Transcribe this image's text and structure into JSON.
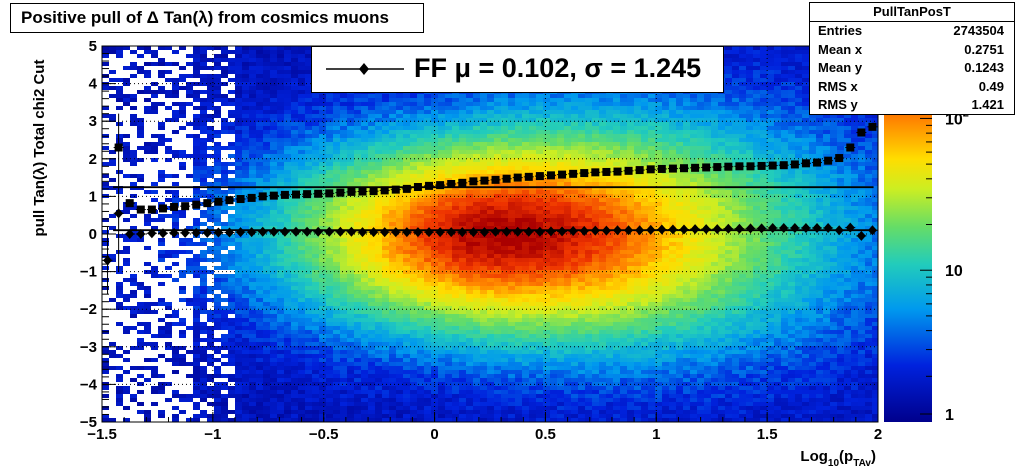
{
  "title": "Positive pull of Δ Tan(λ) from cosmics muons",
  "stats": {
    "name": "PullTanPosT",
    "rows": [
      {
        "label": "Entries",
        "value": "2743504"
      },
      {
        "label": "Mean x",
        "value": "0.2751"
      },
      {
        "label": "Mean y",
        "value": "0.1243"
      },
      {
        "label": "RMS x",
        "value": "0.49"
      },
      {
        "label": "RMS y",
        "value": "1.421"
      }
    ]
  },
  "legend": {
    "label": "FF μ =  0.102, σ =   1.245",
    "marker_color": "#000000"
  },
  "chart_data": {
    "type": "heatmap",
    "title": "Positive pull of Δ Tan(λ) from cosmics muons",
    "xlabel": "Log10(pTAv)",
    "xlabel_main": "Log",
    "xlabel_sub1": "10",
    "xlabel_mid": "(p",
    "xlabel_sub2": "TAv",
    "xlabel_end": ")",
    "ylabel": "pull Tan(λ)  Total chi2 Cut",
    "xlim": [
      -1.5,
      2
    ],
    "ylim": [
      -5,
      5
    ],
    "xticks": [
      {
        "v": -1.5,
        "t": "−1.5"
      },
      {
        "v": -1,
        "t": "−1"
      },
      {
        "v": -0.5,
        "t": "−0.5"
      },
      {
        "v": 0,
        "t": "0"
      },
      {
        "v": 0.5,
        "t": "0.5"
      },
      {
        "v": 1,
        "t": "1"
      },
      {
        "v": 1.5,
        "t": "1.5"
      },
      {
        "v": 2,
        "t": "2"
      }
    ],
    "yticks": [
      {
        "v": 5,
        "t": "5"
      },
      {
        "v": 4,
        "t": "4"
      },
      {
        "v": 3,
        "t": "3"
      },
      {
        "v": 2,
        "t": "2"
      },
      {
        "v": 1,
        "t": "1"
      },
      {
        "v": 0,
        "t": "0"
      },
      {
        "v": -1,
        "t": "−1"
      },
      {
        "v": -2,
        "t": "−2"
      },
      {
        "v": -3,
        "t": "−3"
      },
      {
        "v": -4,
        "t": "−4"
      },
      {
        "v": -5,
        "t": "−5"
      }
    ],
    "grid": true,
    "colorbar": {
      "scale": "log",
      "range": [
        1,
        300
      ],
      "labels": [
        {
          "v": 1,
          "t": "1"
        },
        {
          "v": 10,
          "t": "10"
        },
        {
          "v": 100,
          "t": "10",
          "sup": "2"
        }
      ]
    },
    "heatmap_peak": {
      "x": 0.3,
      "y": 0.0
    },
    "series": [
      {
        "name": "mean",
        "marker": "diamond",
        "x": [
          -1.475,
          -1.425,
          -1.375,
          -1.325,
          -1.275,
          -1.225,
          -1.175,
          -1.125,
          -1.075,
          -1.025,
          -0.975,
          -0.925,
          -0.875,
          -0.825,
          -0.775,
          -0.725,
          -0.675,
          -0.625,
          -0.575,
          -0.525,
          -0.475,
          -0.425,
          -0.375,
          -0.325,
          -0.275,
          -0.225,
          -0.175,
          -0.125,
          -0.075,
          -0.025,
          0.025,
          0.075,
          0.125,
          0.175,
          0.225,
          0.275,
          0.325,
          0.375,
          0.425,
          0.475,
          0.525,
          0.575,
          0.625,
          0.675,
          0.725,
          0.775,
          0.825,
          0.875,
          0.925,
          0.975,
          1.025,
          1.075,
          1.125,
          1.175,
          1.225,
          1.275,
          1.325,
          1.375,
          1.425,
          1.475,
          1.525,
          1.575,
          1.625,
          1.675,
          1.725,
          1.775,
          1.825,
          1.875,
          1.925,
          1.975
        ],
        "y": [
          -0.7,
          0.55,
          0.0,
          0.0,
          0.02,
          0.02,
          0.03,
          0.03,
          0.03,
          0.03,
          0.04,
          0.04,
          0.05,
          0.05,
          0.06,
          0.06,
          0.06,
          0.06,
          0.06,
          0.06,
          0.06,
          0.06,
          0.06,
          0.05,
          0.05,
          0.05,
          0.05,
          0.05,
          0.05,
          0.05,
          0.05,
          0.05,
          0.05,
          0.05,
          0.05,
          0.06,
          0.06,
          0.06,
          0.06,
          0.06,
          0.07,
          0.07,
          0.08,
          0.08,
          0.09,
          0.09,
          0.1,
          0.1,
          0.1,
          0.11,
          0.12,
          0.12,
          0.12,
          0.13,
          0.13,
          0.13,
          0.14,
          0.14,
          0.15,
          0.15,
          0.16,
          0.16,
          0.16,
          0.16,
          0.16,
          0.16,
          0.1,
          0.17,
          -0.05,
          0.1
        ]
      },
      {
        "name": "sigma",
        "marker": "square",
        "x": [
          -1.425,
          -1.375,
          -1.325,
          -1.275,
          -1.225,
          -1.175,
          -1.125,
          -1.075,
          -1.025,
          -0.975,
          -0.925,
          -0.875,
          -0.825,
          -0.775,
          -0.725,
          -0.675,
          -0.625,
          -0.575,
          -0.525,
          -0.475,
          -0.425,
          -0.375,
          -0.325,
          -0.275,
          -0.225,
          -0.175,
          -0.125,
          -0.075,
          -0.025,
          0.025,
          0.075,
          0.125,
          0.175,
          0.225,
          0.275,
          0.325,
          0.375,
          0.425,
          0.475,
          0.525,
          0.575,
          0.625,
          0.675,
          0.725,
          0.775,
          0.825,
          0.875,
          0.925,
          0.975,
          1.025,
          1.075,
          1.125,
          1.175,
          1.225,
          1.275,
          1.325,
          1.375,
          1.425,
          1.475,
          1.525,
          1.575,
          1.625,
          1.675,
          1.725,
          1.775,
          1.825,
          1.875,
          1.925,
          1.975
        ],
        "y": [
          2.3,
          0.82,
          0.65,
          0.65,
          0.68,
          0.72,
          0.74,
          0.78,
          0.82,
          0.86,
          0.9,
          0.93,
          0.96,
          1.0,
          1.02,
          1.04,
          1.05,
          1.06,
          1.07,
          1.08,
          1.1,
          1.12,
          1.13,
          1.14,
          1.16,
          1.18,
          1.2,
          1.25,
          1.28,
          1.3,
          1.33,
          1.36,
          1.4,
          1.42,
          1.44,
          1.47,
          1.5,
          1.52,
          1.54,
          1.56,
          1.58,
          1.6,
          1.62,
          1.64,
          1.65,
          1.66,
          1.68,
          1.7,
          1.72,
          1.73,
          1.74,
          1.75,
          1.76,
          1.77,
          1.78,
          1.79,
          1.8,
          1.8,
          1.81,
          1.82,
          1.83,
          1.85,
          1.88,
          1.9,
          1.95,
          2.02,
          2.3,
          2.7,
          2.85
        ]
      }
    ],
    "hlines": [
      1.245,
      0.102
    ]
  }
}
